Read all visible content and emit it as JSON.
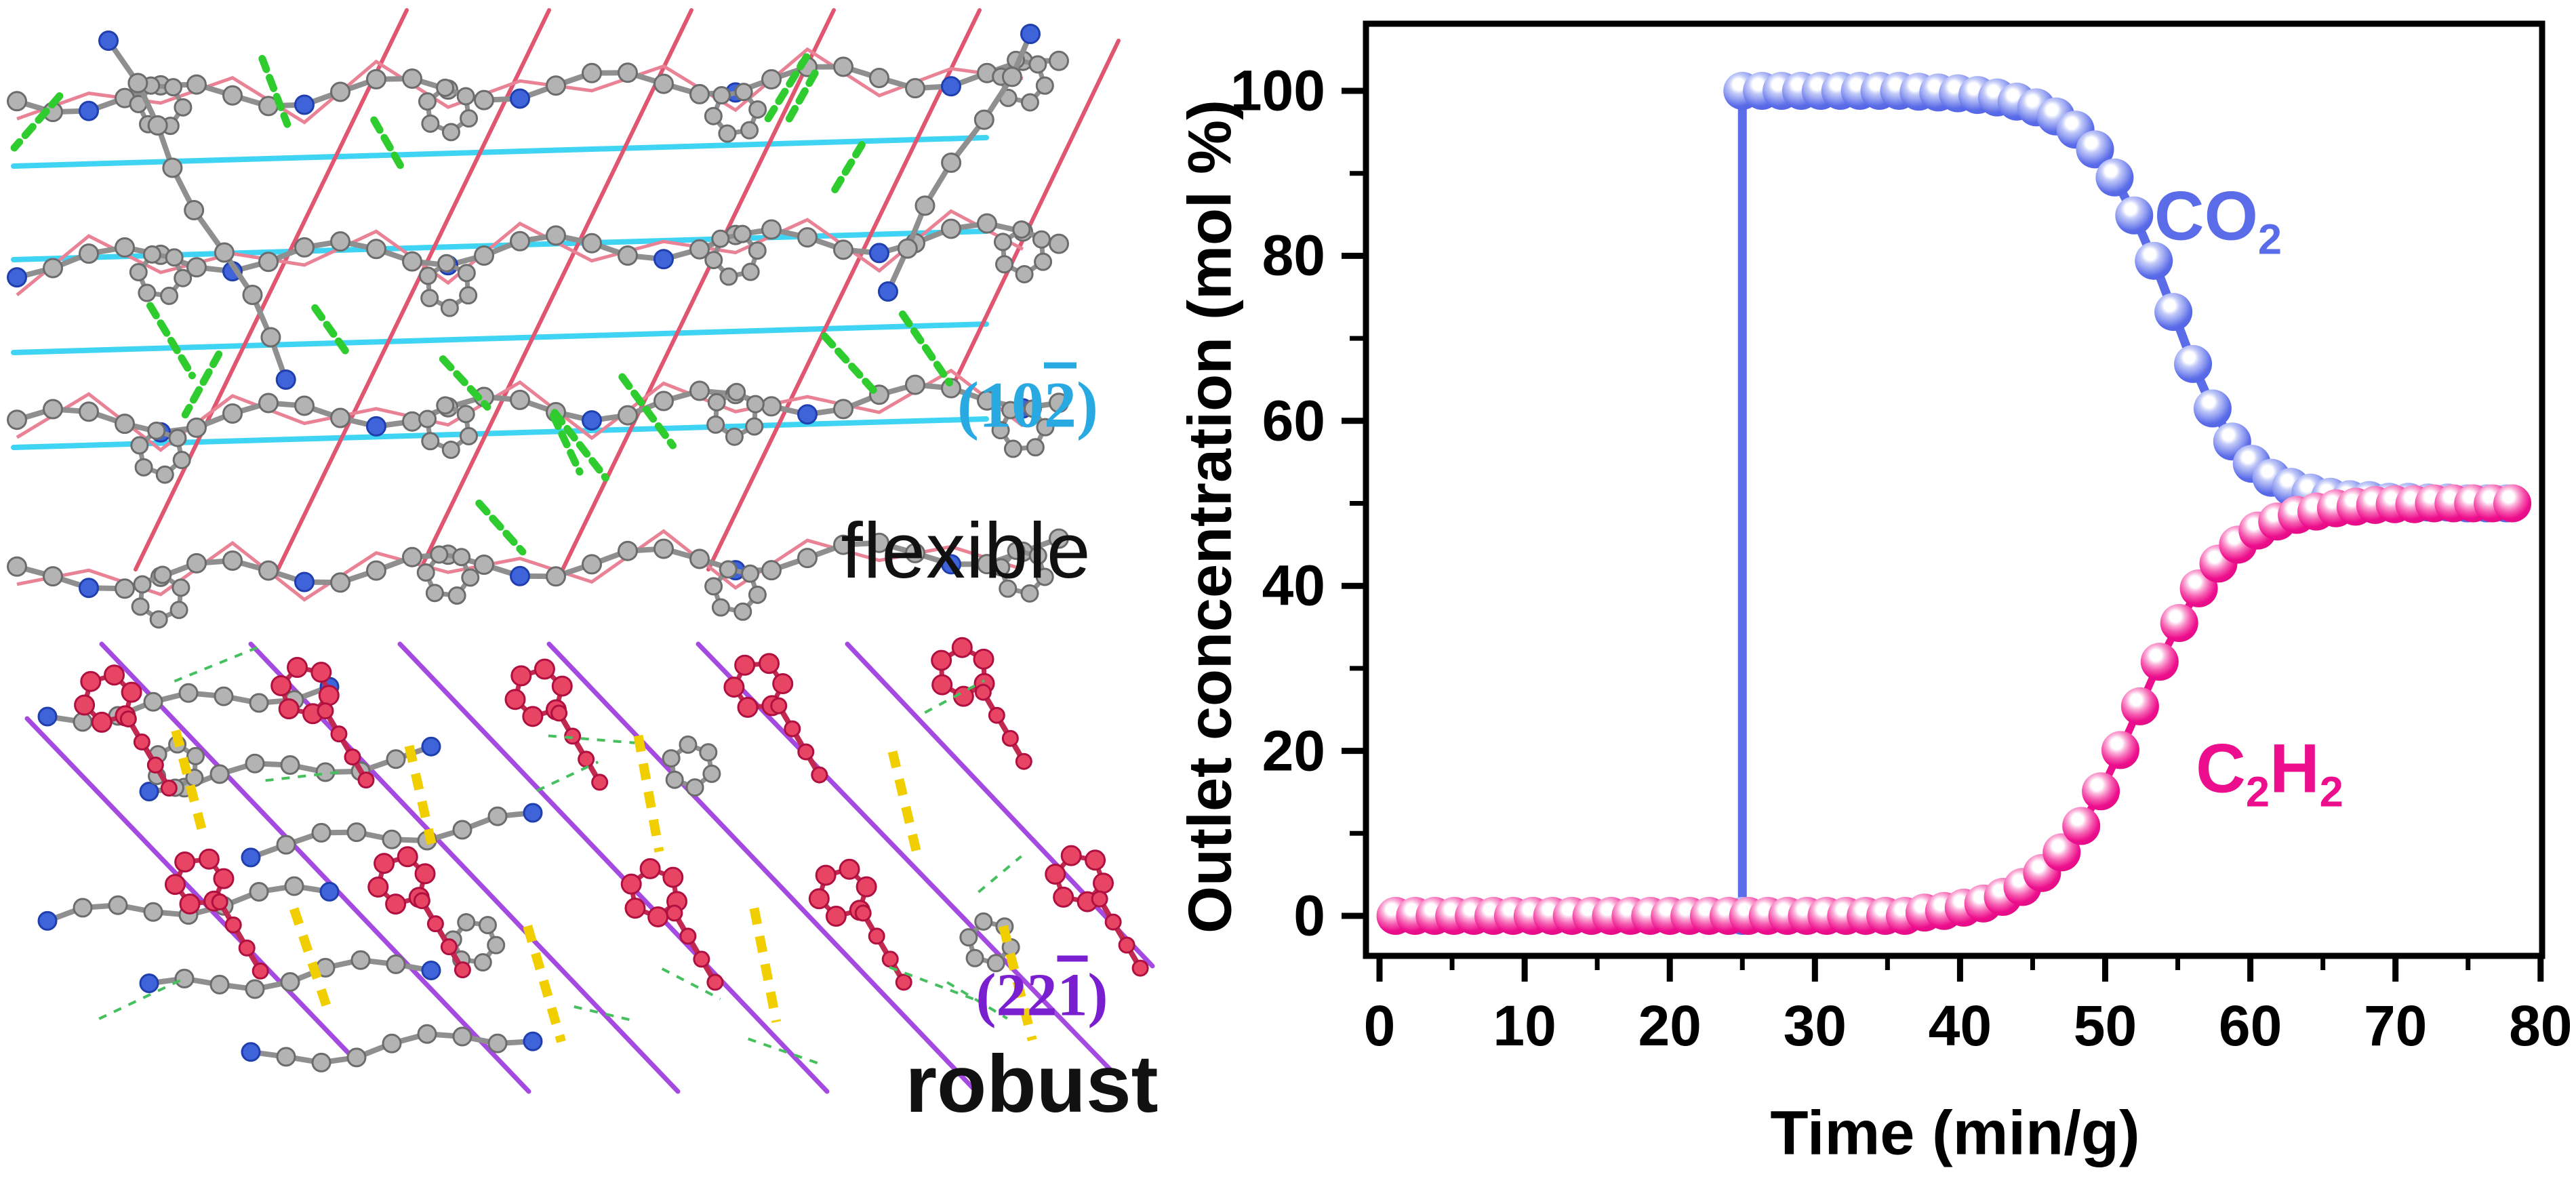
{
  "figure": {
    "panel_flexible": {
      "caption": "flexible",
      "miller_index": {
        "pre": "(10",
        "bar": "2",
        "post": ")"
      },
      "miller_color": "#29a9e2",
      "plane_line_color": "#3fd4f4",
      "lattice_line_color": "#e05570",
      "hbond_color": "#2ecc2e",
      "atom_gray": "#b3b3b3",
      "atom_blue": "#3f63d8",
      "plane_lines": [
        [
          20,
          245,
          1455,
          203
        ],
        [
          20,
          383,
          1455,
          341
        ],
        [
          20,
          520,
          1455,
          478
        ],
        [
          20,
          660,
          1455,
          618
        ]
      ],
      "lattice_lines": [
        [
          600,
          15,
          200,
          840
        ],
        [
          810,
          15,
          410,
          840
        ],
        [
          1020,
          15,
          620,
          840
        ],
        [
          1230,
          15,
          830,
          840
        ],
        [
          1445,
          15,
          1045,
          840
        ],
        [
          1650,
          60,
          1410,
          560
        ]
      ]
    },
    "panel_robust": {
      "caption": "robust",
      "miller_index": {
        "pre": "(22",
        "bar": "1",
        "post": ")"
      },
      "miller_color": "#7a1fd0",
      "plane_line_color": "#a44ae0",
      "hbond_color": "#f0ce00",
      "contact_color": "#46c05e",
      "atom_gray": "#b3b3b3",
      "atom_blue": "#3f63d8",
      "atom_red": "#e84464",
      "plane_lines": [
        [
          40,
          1060,
          530,
          1570
        ],
        [
          150,
          950,
          780,
          1610
        ],
        [
          370,
          950,
          1000,
          1610
        ],
        [
          590,
          950,
          1220,
          1610
        ],
        [
          810,
          950,
          1440,
          1610
        ],
        [
          1030,
          950,
          1640,
          1580
        ],
        [
          1250,
          950,
          1700,
          1425
        ]
      ]
    }
  },
  "chart_data": {
    "type": "scatter-line",
    "title": "",
    "xlabel": "Time (min/g)",
    "ylabel": "Outlet concentration (mol %)",
    "xlim": [
      0,
      80
    ],
    "ylim": [
      -5,
      108
    ],
    "x_major_ticks": [
      0,
      10,
      20,
      30,
      40,
      50,
      60,
      70,
      80
    ],
    "x_minor_ticks": [
      5,
      15,
      25,
      35,
      45,
      55,
      65,
      75
    ],
    "y_major_ticks": [
      0,
      20,
      40,
      60,
      80,
      100
    ],
    "y_minor_ticks": [
      10,
      30,
      50,
      70,
      90
    ],
    "frame_color": "#000000",
    "legend_position": "inline-annotations",
    "grid": false,
    "series": [
      {
        "name": "CO2",
        "label_parts": {
          "main": "CO",
          "sub": "2"
        },
        "color": "#5b6ce8",
        "breakthrough_time": 25.0,
        "x": [
          25.0,
          25.0,
          26.35,
          27.7,
          29.05,
          30.4,
          31.75,
          33.1,
          34.45,
          35.8,
          37.15,
          38.5,
          39.85,
          41.2,
          42.55,
          43.9,
          45.25,
          46.6,
          47.95,
          49.3,
          50.65,
          52.0,
          53.35,
          54.7,
          56.05,
          57.4,
          58.75,
          60.1,
          61.45,
          62.8,
          64.15,
          65.5,
          66.85,
          68.2,
          69.55,
          70.9,
          72.25,
          73.6,
          74.95,
          76.3,
          77.65
        ],
        "y": [
          0,
          100,
          100,
          100,
          100,
          100,
          100,
          100,
          100,
          100,
          99.9,
          99.8,
          99.7,
          99.5,
          99.2,
          98.7,
          98.0,
          96.9,
          95.3,
          92.9,
          89.5,
          84.9,
          79.4,
          73.2,
          66.9,
          61.5,
          57.5,
          54.8,
          53.1,
          52.0,
          51.3,
          50.8,
          50.5,
          50.4,
          50.2,
          50.2,
          50.1,
          50.1,
          50.0,
          50.0,
          50.0
        ]
      },
      {
        "name": "C2H2",
        "label_parts": {
          "p1": "C",
          "s1": "2",
          "p2": "H",
          "s2": "2"
        },
        "color": "#ed0e8d",
        "x": [
          1.1,
          2.45,
          3.8,
          5.15,
          6.5,
          7.85,
          9.2,
          10.55,
          11.9,
          13.25,
          14.6,
          15.95,
          17.3,
          18.65,
          20.0,
          21.35,
          22.7,
          24.05,
          25.4,
          26.75,
          28.1,
          29.45,
          30.8,
          32.15,
          33.5,
          34.85,
          36.2,
          37.55,
          38.9,
          40.25,
          41.6,
          42.95,
          44.3,
          45.65,
          47.0,
          48.35,
          49.7,
          51.05,
          52.4,
          53.75,
          55.1,
          56.45,
          57.8,
          59.15,
          60.5,
          61.85,
          63.2,
          64.55,
          65.9,
          67.25,
          68.6,
          69.95,
          71.3,
          72.65,
          74.0,
          75.35,
          76.7,
          78.05
        ],
        "y": [
          0,
          0,
          0,
          0,
          0,
          0,
          0,
          0,
          0,
          0,
          0,
          0,
          0,
          0,
          0,
          0,
          0,
          0,
          0,
          0,
          0,
          0,
          0,
          0,
          0,
          0,
          0,
          0.4,
          0.6,
          1.0,
          1.5,
          2.3,
          3.5,
          5.2,
          7.7,
          10.9,
          15.1,
          20.1,
          25.4,
          30.8,
          35.5,
          39.7,
          42.7,
          45.0,
          46.7,
          47.8,
          48.6,
          49.0,
          49.4,
          49.6,
          49.8,
          49.9,
          49.9,
          50.0,
          50.0,
          50.0,
          50.0,
          50.0
        ]
      }
    ]
  }
}
